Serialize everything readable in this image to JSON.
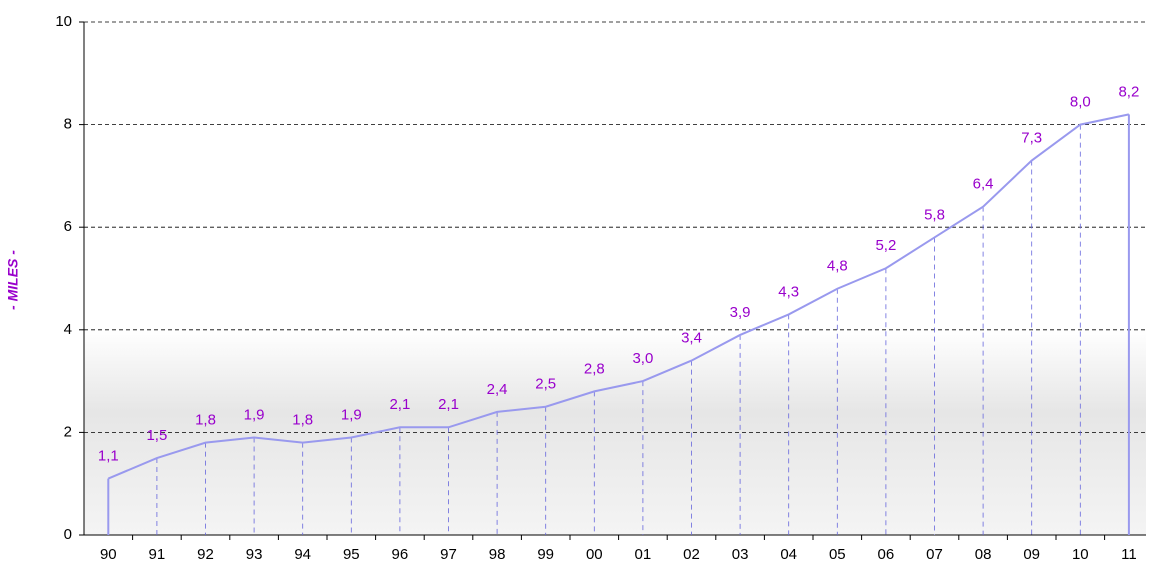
{
  "chart_data": {
    "type": "line",
    "y_label": "- MILES -",
    "categories": [
      "90",
      "91",
      "92",
      "93",
      "94",
      "95",
      "96",
      "97",
      "98",
      "99",
      "00",
      "01",
      "02",
      "03",
      "04",
      "05",
      "06",
      "07",
      "08",
      "09",
      "10",
      "11"
    ],
    "values": [
      1.1,
      1.5,
      1.8,
      1.9,
      1.8,
      1.9,
      2.1,
      2.1,
      2.4,
      2.5,
      2.8,
      3.0,
      3.4,
      3.9,
      4.3,
      4.8,
      5.2,
      5.8,
      6.4,
      7.3,
      8.0,
      8.2
    ],
    "value_labels": [
      "1,1",
      "1,5",
      "1,8",
      "1,9",
      "1,8",
      "1,9",
      "2,1",
      "2,1",
      "2,4",
      "2,5",
      "2,8",
      "3,0",
      "3,4",
      "3,9",
      "4,3",
      "4,8",
      "5,2",
      "5,8",
      "6,4",
      "7,3",
      "8,0",
      "8,2"
    ],
    "color": "#9999ee",
    "ylim": [
      0,
      10
    ],
    "yticks": [
      0,
      2,
      4,
      6,
      8,
      10
    ],
    "grid": true
  }
}
